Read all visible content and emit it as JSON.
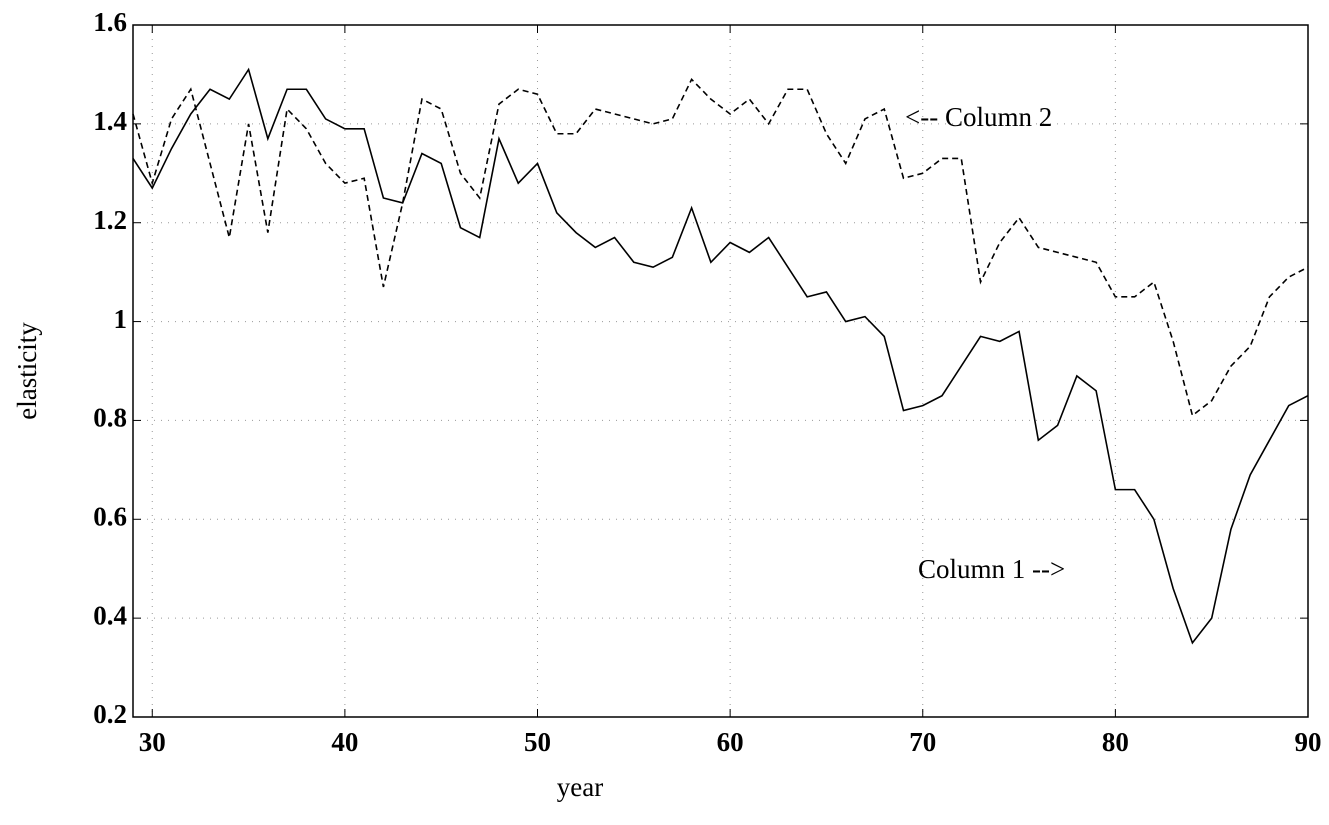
{
  "chart_data": {
    "type": "line",
    "xlabel": "year",
    "ylabel": "elasticity",
    "x": [
      29,
      30,
      31,
      32,
      33,
      34,
      35,
      36,
      37,
      38,
      39,
      40,
      41,
      42,
      43,
      44,
      45,
      46,
      47,
      48,
      49,
      50,
      51,
      52,
      53,
      54,
      55,
      56,
      57,
      58,
      59,
      60,
      61,
      62,
      63,
      64,
      65,
      66,
      67,
      68,
      69,
      70,
      71,
      72,
      73,
      74,
      75,
      76,
      77,
      78,
      79,
      80,
      81,
      82,
      83,
      84,
      85,
      86,
      87,
      88,
      89,
      90
    ],
    "series": [
      {
        "color": "#000000",
        "style": "solid",
        "values": [
          1.33,
          1.27,
          1.35,
          1.42,
          1.47,
          1.45,
          1.51,
          1.37,
          1.47,
          1.47,
          1.41,
          1.39,
          1.39,
          1.25,
          1.24,
          1.34,
          1.32,
          1.19,
          1.17,
          1.37,
          1.28,
          1.32,
          1.22,
          1.18,
          1.15,
          1.17,
          1.12,
          1.11,
          1.13,
          1.23,
          1.12,
          1.16,
          1.14,
          1.17,
          1.11,
          1.05,
          1.06,
          1.0,
          1.01,
          0.97,
          0.82,
          0.83,
          0.85,
          0.91,
          0.97,
          0.96,
          0.98,
          0.76,
          0.79,
          0.89,
          0.86,
          0.66,
          0.66,
          0.6,
          0.46,
          0.35,
          0.4,
          0.58,
          0.69,
          0.76,
          0.83,
          0.85
        ]
      },
      {
        "color": "#000000",
        "style": "dashed",
        "values": [
          1.42,
          1.28,
          1.41,
          1.47,
          1.32,
          1.17,
          1.4,
          1.18,
          1.43,
          1.39,
          1.32,
          1.28,
          1.29,
          1.07,
          1.24,
          1.45,
          1.43,
          1.3,
          1.25,
          1.44,
          1.47,
          1.46,
          1.38,
          1.38,
          1.43,
          1.42,
          1.41,
          1.4,
          1.41,
          1.49,
          1.45,
          1.42,
          1.45,
          1.4,
          1.47,
          1.47,
          1.38,
          1.32,
          1.41,
          1.43,
          1.29,
          1.3,
          1.33,
          1.33,
          1.08,
          1.16,
          1.21,
          1.15,
          1.14,
          1.13,
          1.12,
          1.05,
          1.05,
          1.08,
          0.96,
          0.81,
          0.84,
          0.91,
          0.95,
          1.05,
          1.09,
          1.11
        ]
      }
    ],
    "annotations": [
      "<-- Column 2",
      "Column 1 -->"
    ],
    "xlim": [
      29,
      90
    ],
    "xticks": [
      30,
      40,
      50,
      60,
      70,
      80,
      90
    ],
    "ylim": [
      0.2,
      1.6
    ],
    "yticks": [
      0.2,
      0.4,
      0.6,
      0.8,
      1,
      1.2,
      1.4,
      1.6
    ],
    "grid": true
  }
}
